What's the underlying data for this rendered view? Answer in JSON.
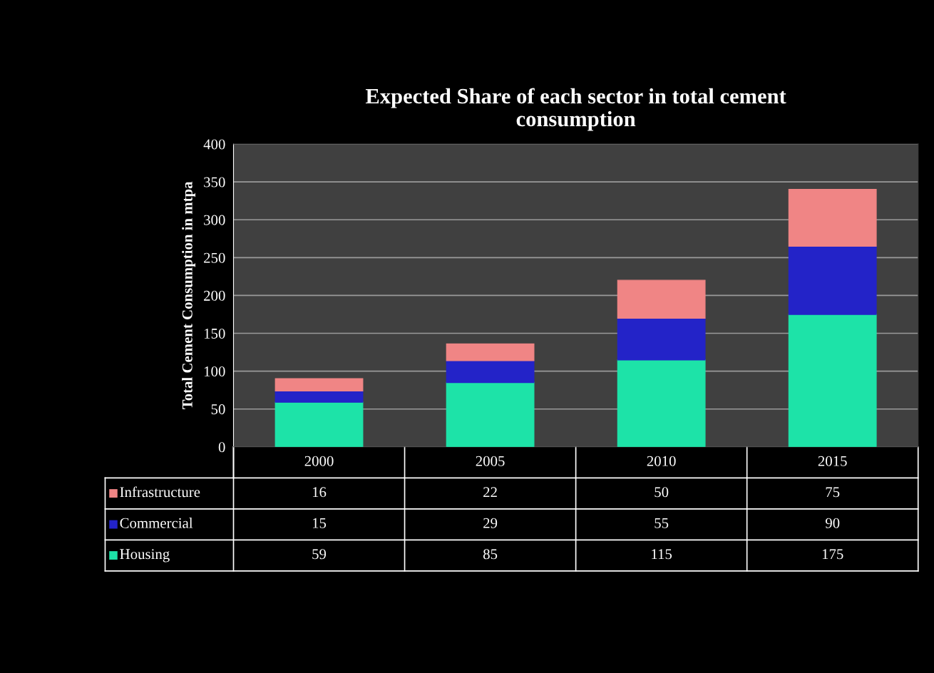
{
  "chart_data": {
    "type": "bar",
    "title": "Expected Share of each sector in total cement\nconsumption",
    "ylabel": "Total Cement Consumption in mtpa",
    "categories": [
      "2000",
      "2005",
      "2010",
      "2015"
    ],
    "stacked": true,
    "series": [
      {
        "name": "Housing",
        "color": "#1de3a8",
        "values": [
          59,
          85,
          115,
          175
        ]
      },
      {
        "name": "Commercial",
        "color": "#2323c8",
        "values": [
          15,
          29,
          55,
          90
        ]
      },
      {
        "name": "Infrastructure",
        "color": "#f08585",
        "values": [
          16,
          22,
          50,
          75
        ]
      }
    ],
    "ylim": [
      0,
      400
    ],
    "yticks": [
      0,
      50,
      100,
      150,
      200,
      250,
      300,
      350,
      400
    ],
    "grid": "y",
    "data_labels": true,
    "legend": "bottom"
  }
}
